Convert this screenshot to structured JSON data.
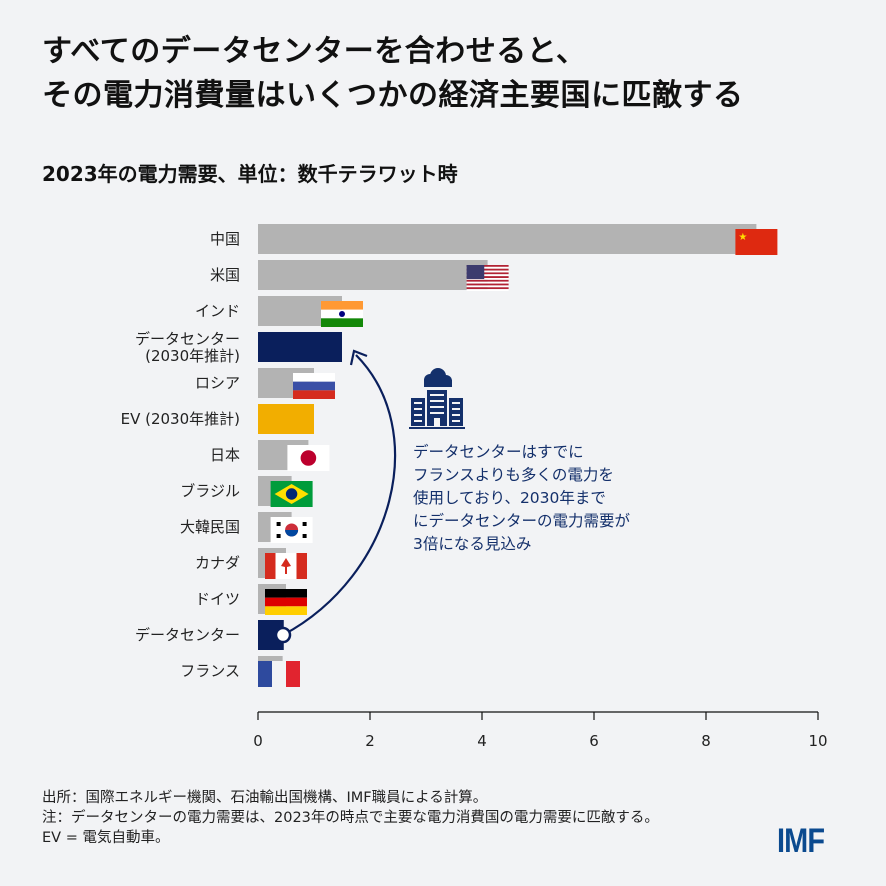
{
  "title_lines": [
    "すべてのデータセンターを合わせると、",
    "その電力消費量はいくつかの経済主要国に匹敵する"
  ],
  "subtitle": "2023年の電力需要、単位：数千テラワット時",
  "chart_data": {
    "type": "bar",
    "orientation": "horizontal",
    "categories": [
      "中国",
      "米国",
      "インド",
      "データセンター\n(2030年推計)",
      "ロシア",
      "EV (2030年推計)",
      "日本",
      "ブラジル",
      "大韓民国",
      "カナダ",
      "ドイツ",
      "データセンター",
      "フランス"
    ],
    "values": [
      8.9,
      4.1,
      1.5,
      1.5,
      1.0,
      1.0,
      0.9,
      0.6,
      0.6,
      0.5,
      0.5,
      0.46,
      0.44
    ],
    "flags": [
      "china",
      "usa",
      "india",
      null,
      "russia",
      null,
      "japan",
      "brazil",
      "korea",
      "canada",
      "germany",
      null,
      "france"
    ],
    "bar_colors": [
      "#b3b3b3",
      "#b3b3b3",
      "#b3b3b3",
      "#0a1f5c",
      "#b3b3b3",
      "#f2ae00",
      "#b3b3b3",
      "#b3b3b3",
      "#b3b3b3",
      "#b3b3b3",
      "#b3b3b3",
      "#0a1f5c",
      "#b3b3b3"
    ],
    "xlim": [
      0,
      10
    ],
    "xticks": [
      0,
      2,
      4,
      6,
      8,
      10
    ],
    "grid": false,
    "xlabel": "",
    "ylabel": ""
  },
  "annotation": {
    "icon": "data-center-cloud-building-icon",
    "lines": [
      "データセンターはすでに",
      "フランスよりも多くの電力を",
      "使用しており、2030年まで",
      "にデータセンターの電力需要が",
      "3倍になる見込み"
    ]
  },
  "notes": [
    "出所：国際エネルギー機関、石油輸出国機構、IMF職員による計算。",
    "注：データセンターの電力需要は、2023年の時点で主要な電力消費国の電力需要に匹敵する。",
    "EV = 電気自動車。"
  ],
  "logo": "IMF",
  "colors": {
    "navy": "#0a1f5c",
    "ev": "#f2ae00",
    "grey": "#b3b3b3",
    "background": "#f2f3f5",
    "annotation_text": "#14306b",
    "logo": "#0b4a8f"
  }
}
